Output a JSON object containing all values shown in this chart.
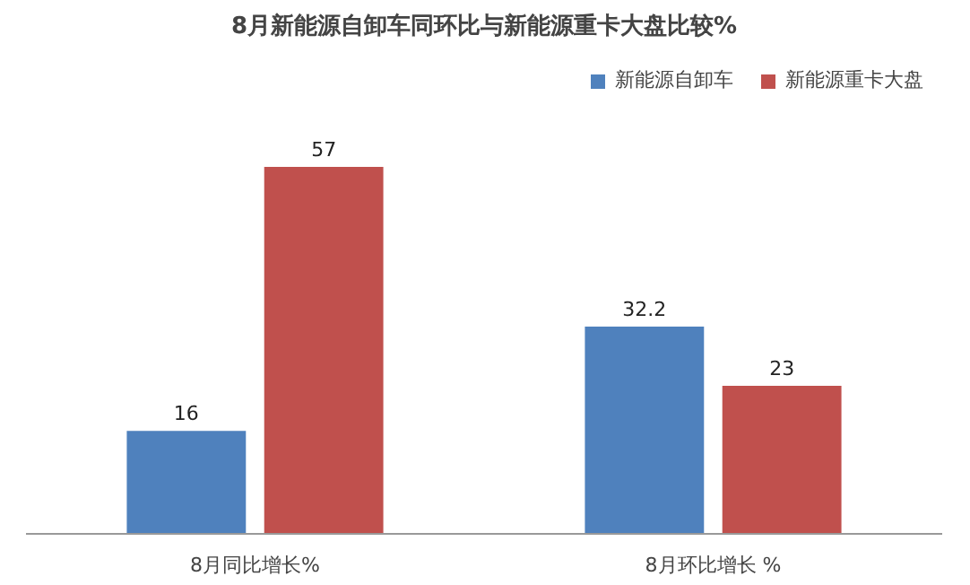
{
  "chart_data": {
    "type": "bar",
    "title": "8月新能源自卸车同环比与新能源重卡大盘比较%",
    "categories": [
      "8月同比增长%",
      "8月环比增长 %"
    ],
    "series": [
      {
        "name": "新能源自卸车",
        "color": "#4f81bd",
        "values": [
          16,
          32.2
        ]
      },
      {
        "name": "新能源重卡大盘",
        "color": "#c0504d",
        "values": [
          57,
          23
        ]
      }
    ],
    "data_labels": true,
    "legend": "top right",
    "grid": false
  }
}
